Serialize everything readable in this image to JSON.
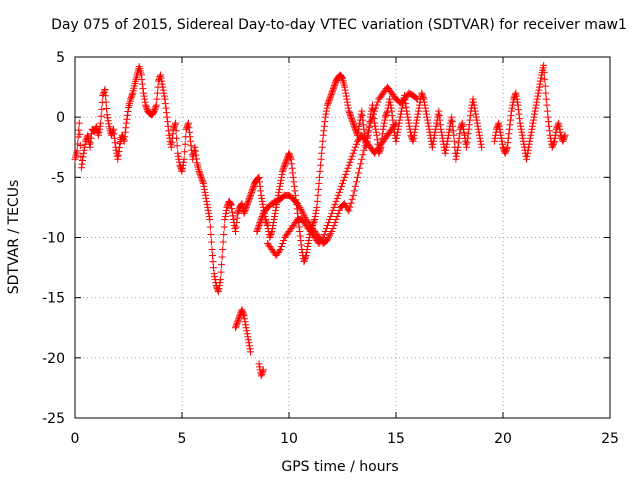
{
  "chart_data": {
    "type": "scatter",
    "title": "Day 075 of 2015, Sidereal Day-to-day VTEC variation (SDTVAR) for receiver maw1",
    "xlabel": "GPS time / hours",
    "ylabel": "SDTVAR / TECUs",
    "xlim": [
      0,
      25
    ],
    "ylim": [
      -25,
      5
    ],
    "xticks": [
      0,
      5,
      10,
      15,
      20,
      25
    ],
    "yticks": [
      -25,
      -20,
      -15,
      -10,
      -5,
      0,
      5
    ],
    "xtick_labels": [
      "0",
      "5",
      "10",
      "15",
      "20",
      "25"
    ],
    "ytick_labels": [
      "-25",
      "-20",
      "-15",
      "-10",
      "-5",
      "0",
      "5"
    ],
    "grid": true,
    "marker": "+",
    "color": "#ff0000",
    "series": [
      {
        "name": "SDTVAR",
        "x": [
          0.0,
          0.1,
          0.2,
          0.3,
          0.4,
          0.5,
          0.6,
          0.7,
          0.8,
          0.9,
          1.0,
          1.1,
          1.2,
          1.3,
          1.4,
          1.5,
          1.6,
          1.7,
          1.8,
          1.9,
          2.0,
          2.1,
          2.2,
          2.3,
          2.4,
          2.5,
          2.6,
          2.7,
          2.8,
          2.9,
          3.0,
          3.1,
          3.2,
          3.3,
          3.4,
          3.5,
          3.6,
          3.7,
          3.8,
          3.9,
          4.0,
          4.1,
          4.2,
          4.3,
          4.4,
          4.5,
          4.6,
          4.7,
          4.8,
          4.9,
          5.0,
          5.1,
          5.2,
          5.3,
          5.4,
          5.5,
          5.6,
          5.7,
          5.8,
          5.9,
          6.0,
          6.1,
          6.2,
          6.3,
          6.4,
          6.5,
          6.6,
          6.7,
          6.8,
          6.9,
          7.0,
          7.1,
          7.2,
          7.3,
          7.4,
          7.5,
          7.6,
          7.7,
          7.8,
          7.9,
          8.0,
          8.1,
          8.2,
          8.3,
          8.4,
          8.5,
          8.6,
          8.7,
          8.8,
          8.9,
          9.0,
          9.1,
          9.2,
          9.3,
          9.4,
          9.5,
          9.6,
          9.7,
          9.8,
          9.9,
          10.0,
          10.1,
          10.2,
          10.3,
          10.4,
          10.5,
          10.6,
          10.7,
          10.8,
          10.9,
          11.0,
          11.1,
          11.2,
          11.3,
          11.4,
          11.5,
          11.6,
          11.7,
          11.8,
          11.9,
          12.0,
          12.1,
          12.2,
          12.3,
          12.4,
          12.5,
          12.6,
          12.7,
          12.8,
          12.9,
          13.0,
          13.1,
          13.2,
          13.3,
          13.4,
          13.5,
          13.6,
          13.7,
          13.8,
          13.9,
          14.0,
          14.1,
          14.2,
          14.3,
          14.4,
          14.5,
          14.6,
          14.7,
          14.8,
          14.9,
          15.0,
          15.1,
          15.2,
          15.3,
          15.4,
          15.5,
          15.6,
          15.7,
          15.8,
          15.9,
          16.0,
          16.1,
          16.2,
          16.3,
          16.4,
          16.5,
          16.6,
          16.7,
          16.8,
          16.9,
          17.0,
          17.1,
          17.2,
          17.3,
          17.4,
          17.5,
          17.6,
          17.7,
          17.8,
          17.9,
          18.0,
          18.1,
          18.2,
          18.3,
          18.4,
          18.5,
          18.6,
          18.7,
          18.8,
          18.9,
          19.0,
          19.6,
          19.7,
          19.8,
          19.9,
          20.0,
          20.1,
          20.2,
          20.3,
          20.4,
          20.5,
          20.6,
          20.7,
          20.8,
          20.9,
          21.0,
          21.1,
          21.2,
          21.3,
          21.4,
          21.5,
          21.6,
          21.7,
          21.8,
          21.9,
          22.0,
          22.1,
          22.2,
          22.3,
          22.4,
          22.5,
          22.6,
          22.7,
          22.8,
          22.9,
          8.5,
          8.6,
          8.7,
          8.8,
          9.0,
          9.2,
          9.4,
          9.6,
          9.8,
          10.0,
          10.2,
          10.4,
          10.6,
          10.8,
          11.0,
          11.2,
          11.4,
          11.6,
          11.8,
          12.0,
          12.2,
          12.4,
          12.6,
          12.8,
          13.0,
          13.2,
          13.4,
          13.6,
          13.8,
          14.0,
          14.2,
          14.4,
          14.6,
          14.8,
          15.0,
          15.2,
          15.4,
          15.6,
          15.8,
          16.0,
          9.0,
          9.2,
          9.4,
          9.6,
          9.8,
          10.0,
          10.2,
          10.4,
          10.6,
          10.8,
          11.0,
          11.2,
          11.4,
          11.6,
          11.8,
          12.0,
          12.2,
          12.4,
          12.6,
          12.8,
          13.0,
          13.2,
          13.4,
          13.6,
          13.8,
          14.0,
          14.2,
          14.4,
          14.6,
          14.8,
          15.0,
          7.5,
          7.6,
          7.7,
          7.8,
          7.9,
          8.0,
          8.1,
          8.2,
          8.6,
          8.7,
          8.8
        ],
        "y": [
          -3.5,
          -2.8,
          -0.5,
          -4.2,
          -3.0,
          -2.0,
          -1.5,
          -2.5,
          -1.0,
          -1.2,
          -0.8,
          -1.5,
          -0.5,
          1.8,
          2.3,
          0.2,
          -0.8,
          -1.5,
          -1.0,
          -2.5,
          -3.5,
          -2.2,
          -1.5,
          -2.0,
          -0.5,
          0.8,
          1.5,
          2.0,
          2.8,
          3.5,
          4.2,
          3.5,
          2.0,
          1.0,
          0.5,
          0.3,
          0.2,
          0.5,
          1.0,
          3.0,
          3.5,
          2.5,
          1.5,
          0.0,
          -1.5,
          -2.5,
          -1.0,
          -0.5,
          -3.0,
          -4.0,
          -4.5,
          -3.5,
          -1.0,
          -0.5,
          -2.0,
          -3.5,
          -2.5,
          -3.8,
          -4.5,
          -5.0,
          -5.5,
          -6.5,
          -7.5,
          -8.5,
          -11.0,
          -13.0,
          -14.0,
          -14.5,
          -13.5,
          -11.0,
          -8.5,
          -7.5,
          -7.0,
          -7.3,
          -8.5,
          -9.5,
          -8.0,
          -7.5,
          -7.2,
          -8.0,
          -7.5,
          -7.0,
          -6.5,
          -6.0,
          -5.5,
          -5.2,
          -5.0,
          -6.5,
          -7.5,
          -8.5,
          -9.0,
          -10.0,
          -9.5,
          -8.5,
          -7.5,
          -6.5,
          -5.5,
          -4.5,
          -4.0,
          -3.5,
          -3.0,
          -3.5,
          -5.0,
          -6.5,
          -8.0,
          -9.5,
          -11.0,
          -12.0,
          -11.5,
          -10.5,
          -9.5,
          -9.0,
          -8.5,
          -7.5,
          -5.5,
          -3.5,
          -1.5,
          0.0,
          1.0,
          1.5,
          2.0,
          2.5,
          3.0,
          3.3,
          3.5,
          3.2,
          2.5,
          1.5,
          0.5,
          0.0,
          -0.5,
          -1.0,
          -1.5,
          -0.5,
          0.5,
          -1.0,
          -2.5,
          -1.5,
          0.0,
          1.0,
          -0.5,
          -1.5,
          -3.0,
          -2.5,
          -1.0,
          0.0,
          0.5,
          1.5,
          0.5,
          -1.0,
          -2.0,
          -1.0,
          0.0,
          1.0,
          1.8,
          0.5,
          -0.5,
          -1.5,
          -2.0,
          -1.0,
          0.0,
          1.0,
          2.0,
          1.5,
          0.5,
          -0.5,
          -1.5,
          -2.5,
          -1.5,
          -0.5,
          0.5,
          -1.0,
          -2.0,
          -3.0,
          -2.0,
          -1.0,
          0.0,
          -1.5,
          -3.5,
          -2.5,
          -1.0,
          -0.5,
          -1.5,
          -2.5,
          -1.0,
          0.5,
          1.5,
          0.5,
          -0.5,
          -1.5,
          -2.5,
          -2.0,
          -1.0,
          -0.5,
          -1.5,
          -2.5,
          -3.0,
          -2.5,
          -1.0,
          0.5,
          1.5,
          2.0,
          1.0,
          -0.5,
          -1.5,
          -2.5,
          -3.5,
          -2.5,
          -1.5,
          -0.5,
          0.5,
          1.5,
          2.5,
          3.5,
          4.3,
          2.0,
          0.0,
          -1.5,
          -2.5,
          -2.0,
          -1.0,
          -0.5,
          -1.5,
          -2.0,
          -1.5,
          -9.5,
          -9.0,
          -8.5,
          -8.0,
          -7.5,
          -7.2,
          -7.0,
          -6.8,
          -6.5,
          -6.5,
          -6.8,
          -7.2,
          -7.8,
          -8.5,
          -9.0,
          -9.5,
          -10.0,
          -10.5,
          -10.2,
          -9.5,
          -8.5,
          -7.5,
          -7.2,
          -7.8,
          -6.5,
          -5.0,
          -3.5,
          -2.0,
          -0.5,
          0.5,
          1.5,
          2.0,
          2.5,
          2.0,
          1.5,
          1.2,
          1.5,
          2.0,
          1.8,
          1.5,
          -10.5,
          -11.0,
          -11.5,
          -11.0,
          -10.0,
          -9.5,
          -9.0,
          -8.5,
          -8.5,
          -9.0,
          -9.5,
          -10.0,
          -10.5,
          -10.0,
          -9.0,
          -8.0,
          -7.0,
          -6.0,
          -5.0,
          -4.0,
          -3.0,
          -2.0,
          -1.5,
          -2.0,
          -2.5,
          -3.0,
          -2.5,
          -2.0,
          -1.5,
          -1.0,
          -0.5,
          -17.5,
          -17.0,
          -16.5,
          -16.0,
          -16.5,
          -17.5,
          -18.5,
          -19.5,
          -20.5,
          -21.5,
          -21.0
        ]
      }
    ]
  }
}
